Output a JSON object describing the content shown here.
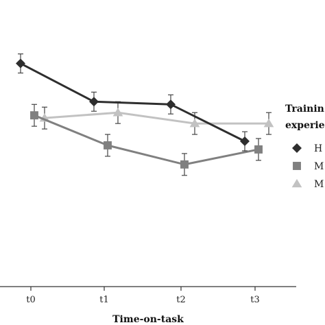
{
  "chart_data": {
    "type": "line",
    "x_label": "Time-on-task",
    "categories": [
      "t0",
      "t1",
      "t2",
      "t3"
    ],
    "legend_title": [
      "Trainin",
      "experie"
    ],
    "legend_placement": "right",
    "grid": false,
    "series": [
      {
        "name": "H",
        "marker": "diamond",
        "color": "#2e2e2e",
        "values": [
          3.27,
          2.71,
          2.67,
          2.13
        ],
        "errors": [
          0.14,
          0.14,
          0.14,
          0.14
        ]
      },
      {
        "name": "M",
        "marker": "square",
        "color": "#808080",
        "values": [
          2.51,
          2.07,
          1.79,
          2.01
        ],
        "errors": [
          0.16,
          0.16,
          0.16,
          0.16
        ]
      },
      {
        "name": "M",
        "marker": "triangle",
        "color": "#c2c2c2",
        "values": [
          2.47,
          2.55,
          2.39,
          2.39
        ],
        "errors": [
          0.16,
          0.16,
          0.16,
          0.16
        ]
      }
    ]
  }
}
